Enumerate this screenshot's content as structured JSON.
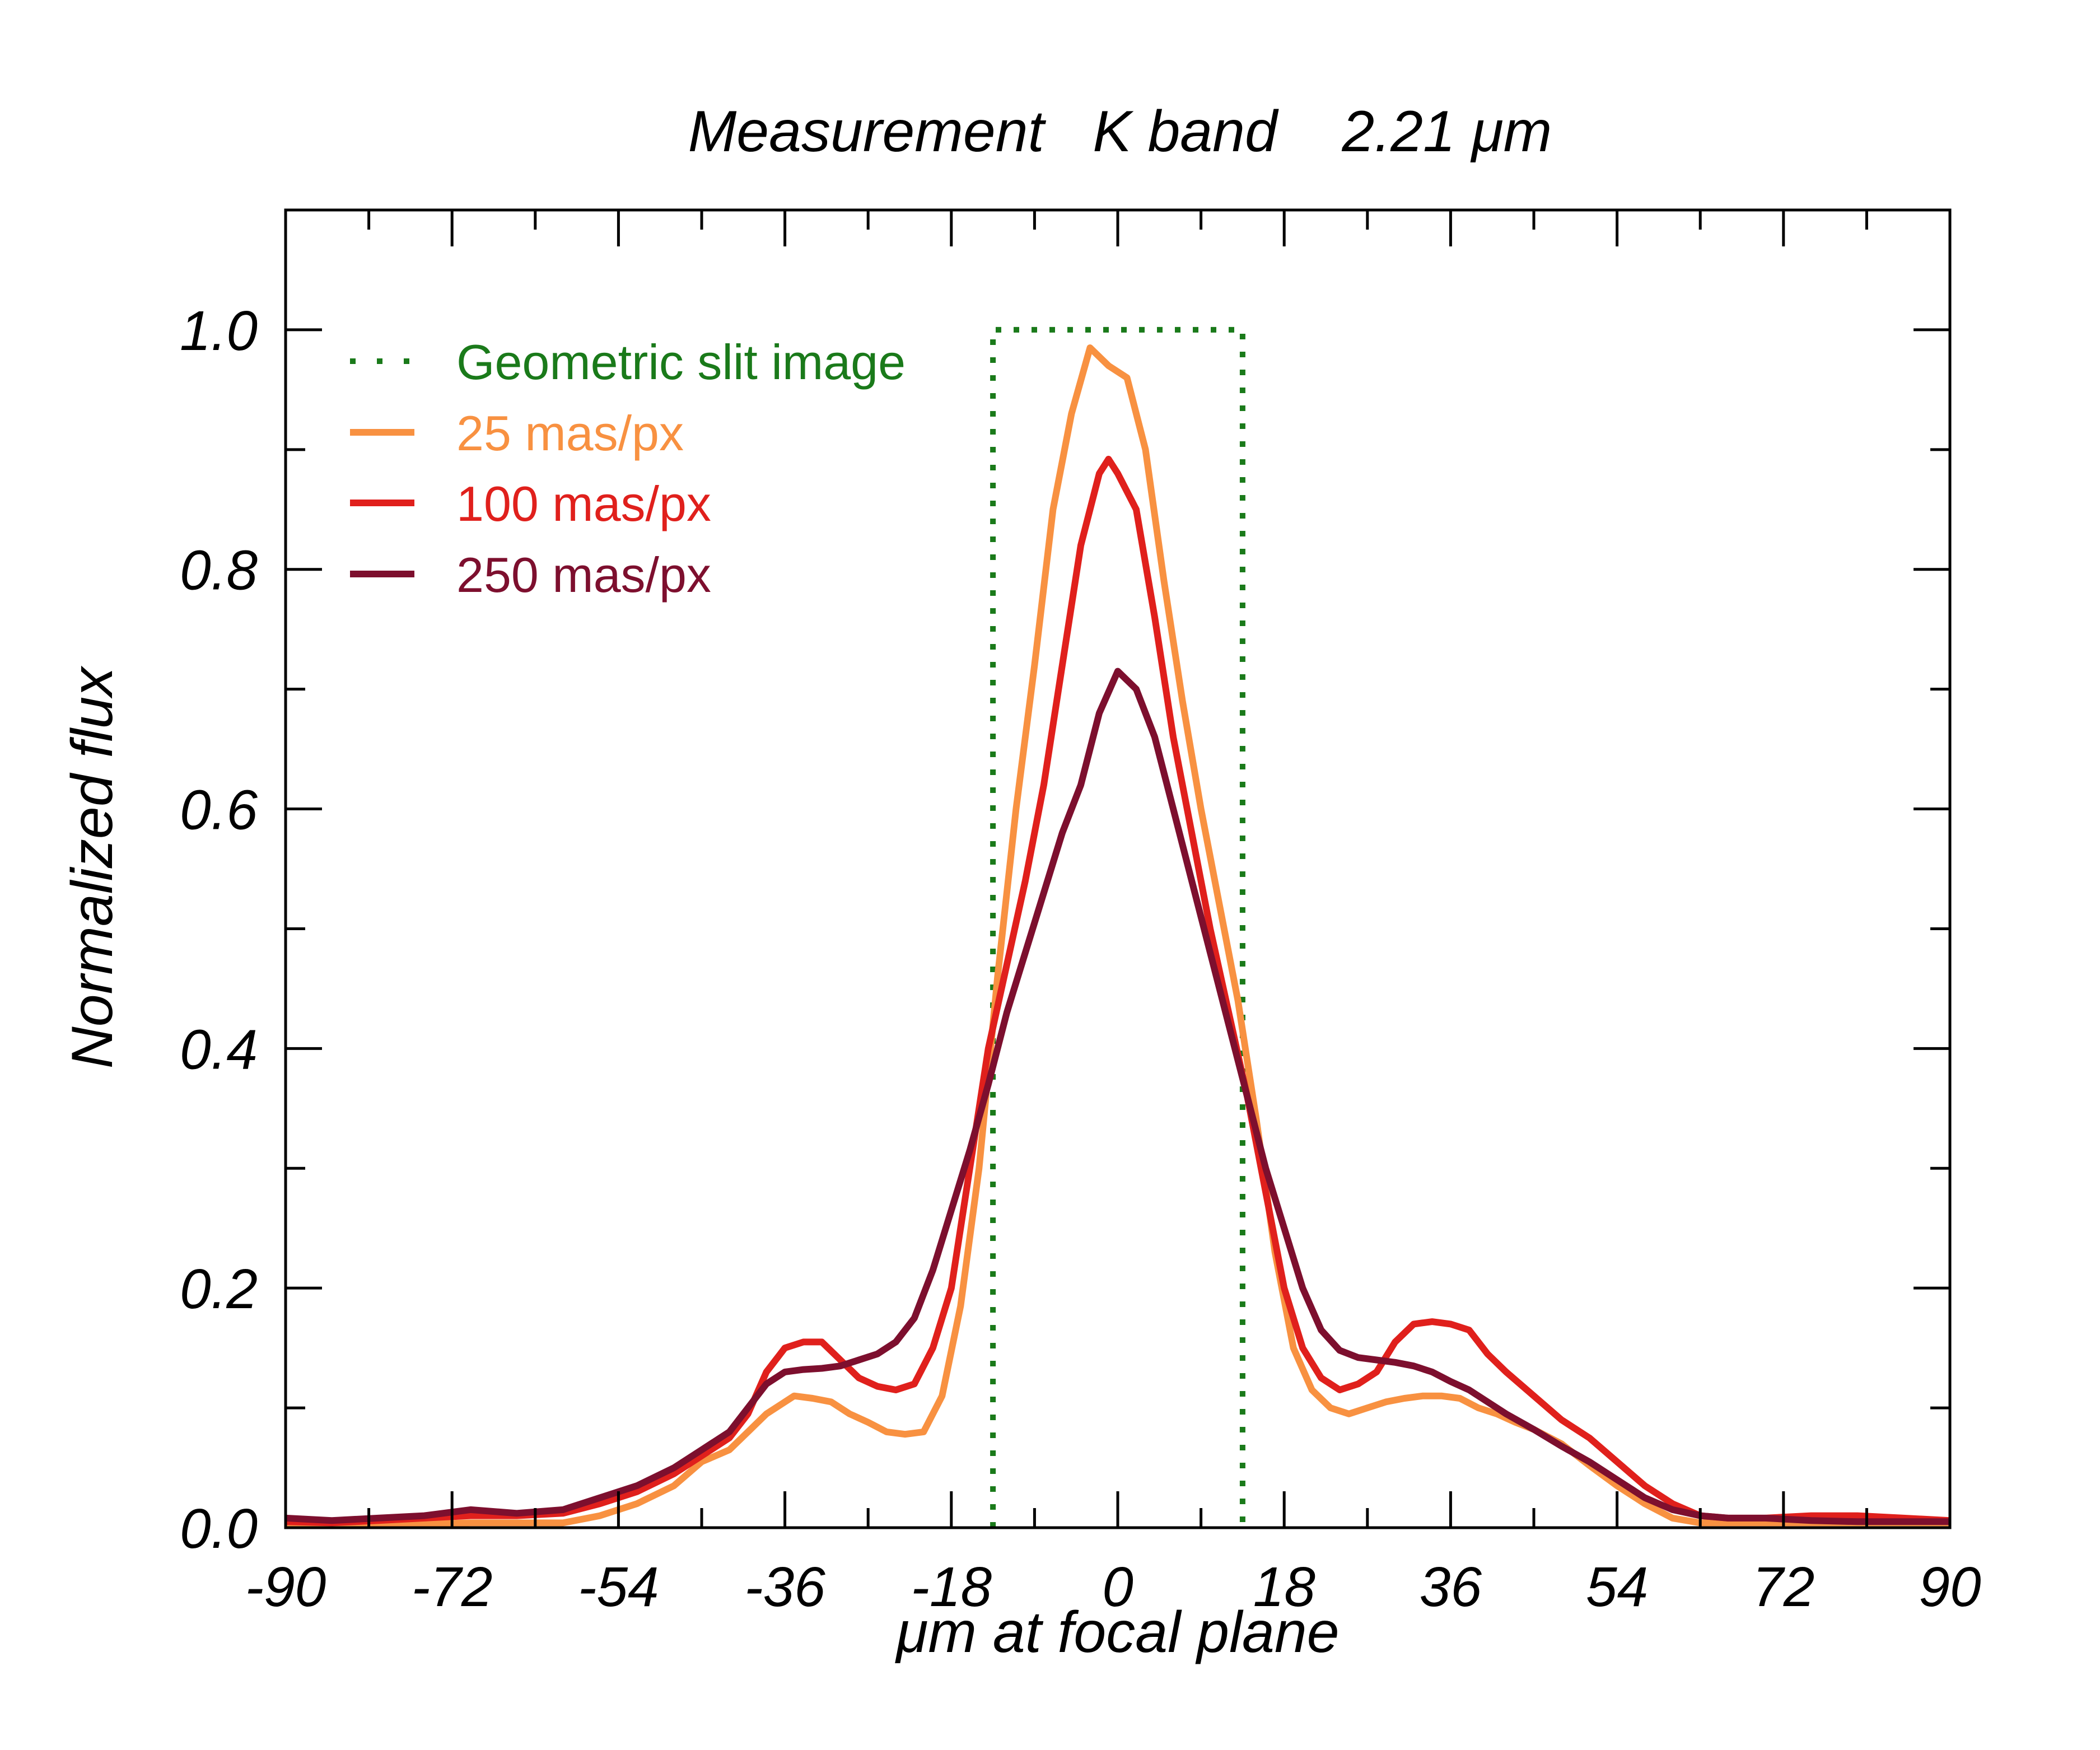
{
  "chart_data": {
    "type": "line",
    "title": "Measurement   K band    2.21 μm",
    "xlabel": "μm at focal plane",
    "ylabel": "Normalized flux",
    "xlim": [
      -90,
      90
    ],
    "ylim": [
      0,
      1.1
    ],
    "x_ticks": [
      -90,
      -72,
      -54,
      -36,
      -18,
      0,
      18,
      36,
      54,
      72,
      90
    ],
    "x_tick_labels": [
      "-90",
      "-72",
      "-54",
      "-36",
      "-18",
      "0",
      "18",
      "36",
      "54",
      "72",
      "90"
    ],
    "x_minor_ticks": [
      -81,
      -63,
      -45,
      -27,
      -9,
      9,
      27,
      45,
      63,
      81
    ],
    "y_ticks": [
      0,
      0.2,
      0.4,
      0.6,
      0.8,
      1.0
    ],
    "y_tick_labels": [
      "0.0",
      "0.2",
      "0.4",
      "0.6",
      "0.8",
      "1.0"
    ],
    "y_minor_ticks": [
      0.1,
      0.3,
      0.5,
      0.7,
      0.9
    ],
    "grid": false,
    "legend_position": "top-left",
    "series": [
      {
        "name": "Geometric slit image",
        "color": "#1a7a1a",
        "style": "dotted",
        "x": [
          -13.5,
          -13.5,
          13.5,
          13.5
        ],
        "y": [
          0,
          1.0,
          1.0,
          0
        ]
      },
      {
        "name": "25 mas/px",
        "color": "#f89141",
        "style": "solid",
        "x": [
          -90,
          -85,
          -80,
          -75,
          -70,
          -65,
          -60,
          -56,
          -52,
          -48,
          -45,
          -42,
          -40,
          -38,
          -35,
          -33,
          -31,
          -29,
          -27,
          -25,
          -23,
          -21,
          -19,
          -17,
          -15,
          -13,
          -11,
          -9,
          -7,
          -5,
          -3,
          -1,
          1,
          3,
          5,
          7,
          9,
          11,
          13,
          15,
          17,
          19,
          21,
          23,
          25,
          27,
          29,
          31,
          33,
          35,
          37,
          39,
          41,
          43,
          45,
          48,
          51,
          54,
          57,
          60,
          63,
          66,
          70,
          75,
          80,
          85,
          90
        ],
        "y": [
          0.003,
          0.003,
          0.003,
          0.003,
          0.004,
          0.004,
          0.004,
          0.01,
          0.02,
          0.035,
          0.055,
          0.065,
          0.08,
          0.095,
          0.11,
          0.108,
          0.105,
          0.095,
          0.088,
          0.08,
          0.078,
          0.08,
          0.11,
          0.185,
          0.3,
          0.46,
          0.6,
          0.72,
          0.85,
          0.93,
          0.985,
          0.97,
          0.96,
          0.9,
          0.79,
          0.69,
          0.6,
          0.52,
          0.44,
          0.34,
          0.23,
          0.15,
          0.115,
          0.1,
          0.095,
          0.1,
          0.105,
          0.108,
          0.11,
          0.11,
          0.108,
          0.1,
          0.095,
          0.088,
          0.082,
          0.07,
          0.052,
          0.035,
          0.02,
          0.008,
          0.004,
          0.004,
          0.004,
          0.004,
          0.004,
          0.004,
          0.004
        ]
      },
      {
        "name": "100 mas/px",
        "color": "#e0201c",
        "style": "solid",
        "x": [
          -90,
          -85,
          -80,
          -75,
          -70,
          -65,
          -60,
          -56,
          -52,
          -48,
          -45,
          -42,
          -40,
          -38,
          -36,
          -34,
          -32,
          -30,
          -28,
          -26,
          -24,
          -22,
          -20,
          -18,
          -16,
          -14,
          -12,
          -10,
          -8,
          -6,
          -4,
          -2,
          -1,
          0,
          2,
          4,
          6,
          8,
          10,
          12,
          14,
          16,
          18,
          20,
          22,
          24,
          26,
          28,
          30,
          32,
          34,
          36,
          38,
          40,
          42,
          45,
          48,
          51,
          54,
          57,
          60,
          63,
          66,
          70,
          75,
          80,
          85,
          90
        ],
        "y": [
          0.005,
          0.004,
          0.006,
          0.008,
          0.01,
          0.01,
          0.012,
          0.02,
          0.03,
          0.045,
          0.06,
          0.075,
          0.095,
          0.13,
          0.15,
          0.155,
          0.155,
          0.14,
          0.125,
          0.118,
          0.115,
          0.12,
          0.15,
          0.2,
          0.3,
          0.4,
          0.47,
          0.54,
          0.62,
          0.72,
          0.82,
          0.88,
          0.892,
          0.88,
          0.85,
          0.76,
          0.66,
          0.58,
          0.5,
          0.43,
          0.36,
          0.28,
          0.2,
          0.15,
          0.125,
          0.115,
          0.12,
          0.13,
          0.155,
          0.17,
          0.172,
          0.17,
          0.165,
          0.145,
          0.13,
          0.11,
          0.09,
          0.075,
          0.055,
          0.035,
          0.02,
          0.01,
          0.008,
          0.008,
          0.01,
          0.01,
          0.008,
          0.006
        ]
      },
      {
        "name": "250 mas/px",
        "color": "#7d0f2e",
        "style": "solid",
        "x": [
          -90,
          -85,
          -80,
          -75,
          -70,
          -65,
          -60,
          -56,
          -52,
          -48,
          -45,
          -42,
          -40,
          -38,
          -36,
          -34,
          -32,
          -30,
          -28,
          -26,
          -24,
          -22,
          -20,
          -18,
          -16,
          -14,
          -12,
          -10,
          -8,
          -6,
          -4,
          -2,
          0,
          2,
          4,
          6,
          8,
          10,
          12,
          14,
          16,
          18,
          20,
          22,
          24,
          26,
          28,
          30,
          32,
          34,
          36,
          38,
          40,
          42,
          45,
          48,
          51,
          54,
          57,
          60,
          63,
          66,
          70,
          75,
          80,
          85,
          90
        ],
        "y": [
          0.008,
          0.006,
          0.008,
          0.01,
          0.015,
          0.012,
          0.015,
          0.025,
          0.035,
          0.05,
          0.065,
          0.08,
          0.1,
          0.12,
          0.13,
          0.132,
          0.133,
          0.135,
          0.14,
          0.145,
          0.155,
          0.175,
          0.215,
          0.265,
          0.315,
          0.37,
          0.43,
          0.48,
          0.53,
          0.58,
          0.62,
          0.68,
          0.715,
          0.7,
          0.66,
          0.6,
          0.54,
          0.48,
          0.42,
          0.36,
          0.3,
          0.25,
          0.2,
          0.165,
          0.148,
          0.142,
          0.14,
          0.138,
          0.135,
          0.13,
          0.122,
          0.115,
          0.105,
          0.095,
          0.082,
          0.068,
          0.055,
          0.04,
          0.025,
          0.015,
          0.01,
          0.008,
          0.008,
          0.006,
          0.005,
          0.005,
          0.005
        ]
      }
    ]
  }
}
